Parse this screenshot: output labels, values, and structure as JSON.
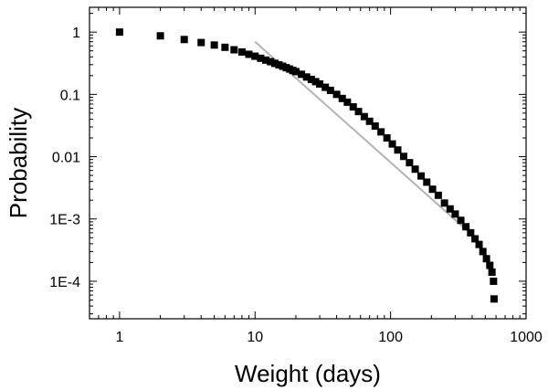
{
  "chart_data": {
    "type": "scatter",
    "title": "",
    "xlabel": "Weight (days)",
    "ylabel": "Probability",
    "x_scale": "log",
    "y_scale": "log",
    "xlim": [
      0.6,
      1000
    ],
    "ylim": [
      2.5e-05,
      2.5
    ],
    "grid": false,
    "legend": "none",
    "x_ticks": [
      {
        "value": 1,
        "label": "1"
      },
      {
        "value": 10,
        "label": "10"
      },
      {
        "value": 100,
        "label": "100"
      },
      {
        "value": 1000,
        "label": "1000"
      }
    ],
    "y_ticks": [
      {
        "value": 1,
        "label": "1"
      },
      {
        "value": 0.1,
        "label": "0.1"
      },
      {
        "value": 0.01,
        "label": "0.01"
      },
      {
        "value": 0.001,
        "label": "1E-3"
      },
      {
        "value": 0.0001,
        "label": "1E-4"
      }
    ],
    "series": [
      {
        "marker": "square",
        "color": "#000000",
        "points": [
          [
            1,
            1.0
          ],
          [
            2,
            0.87
          ],
          [
            3,
            0.76
          ],
          [
            4,
            0.68
          ],
          [
            5,
            0.62
          ],
          [
            6,
            0.57
          ],
          [
            7,
            0.52
          ],
          [
            8,
            0.48
          ],
          [
            9,
            0.44
          ],
          [
            10,
            0.41
          ],
          [
            11,
            0.38
          ],
          [
            12,
            0.355
          ],
          [
            13,
            0.335
          ],
          [
            14,
            0.315
          ],
          [
            15,
            0.298
          ],
          [
            16,
            0.283
          ],
          [
            17,
            0.268
          ],
          [
            18,
            0.255
          ],
          [
            19,
            0.242
          ],
          [
            20,
            0.232
          ],
          [
            22,
            0.21
          ],
          [
            24,
            0.19
          ],
          [
            26,
            0.174
          ],
          [
            28,
            0.16
          ],
          [
            30,
            0.147
          ],
          [
            33,
            0.13
          ],
          [
            36,
            0.116
          ],
          [
            40,
            0.1
          ],
          [
            44,
            0.086
          ],
          [
            48,
            0.075
          ],
          [
            53,
            0.063
          ],
          [
            58,
            0.053
          ],
          [
            64,
            0.044
          ],
          [
            70,
            0.037
          ],
          [
            77,
            0.031
          ],
          [
            85,
            0.025
          ],
          [
            94,
            0.02
          ],
          [
            103,
            0.016
          ],
          [
            113,
            0.0128
          ],
          [
            125,
            0.0101
          ],
          [
            138,
            0.008
          ],
          [
            152,
            0.0063
          ],
          [
            168,
            0.0049
          ],
          [
            185,
            0.0039
          ],
          [
            204,
            0.003
          ],
          [
            225,
            0.0024
          ],
          [
            250,
            0.0018
          ],
          [
            275,
            0.00145
          ],
          [
            300,
            0.0012
          ],
          [
            330,
            0.00095
          ],
          [
            360,
            0.00075
          ],
          [
            390,
            0.0006
          ],
          [
            420,
            0.00048
          ],
          [
            450,
            0.00039
          ],
          [
            480,
            0.0003
          ],
          [
            510,
            0.00023
          ],
          [
            540,
            0.00018
          ],
          [
            560,
            0.00014
          ],
          [
            575,
            0.0001
          ],
          [
            580,
            5.2e-05
          ]
        ]
      },
      {
        "marker": "line",
        "color": "#b4b4b4",
        "points": [
          [
            10,
            0.7
          ],
          [
            400,
            0.00055
          ]
        ]
      }
    ]
  }
}
